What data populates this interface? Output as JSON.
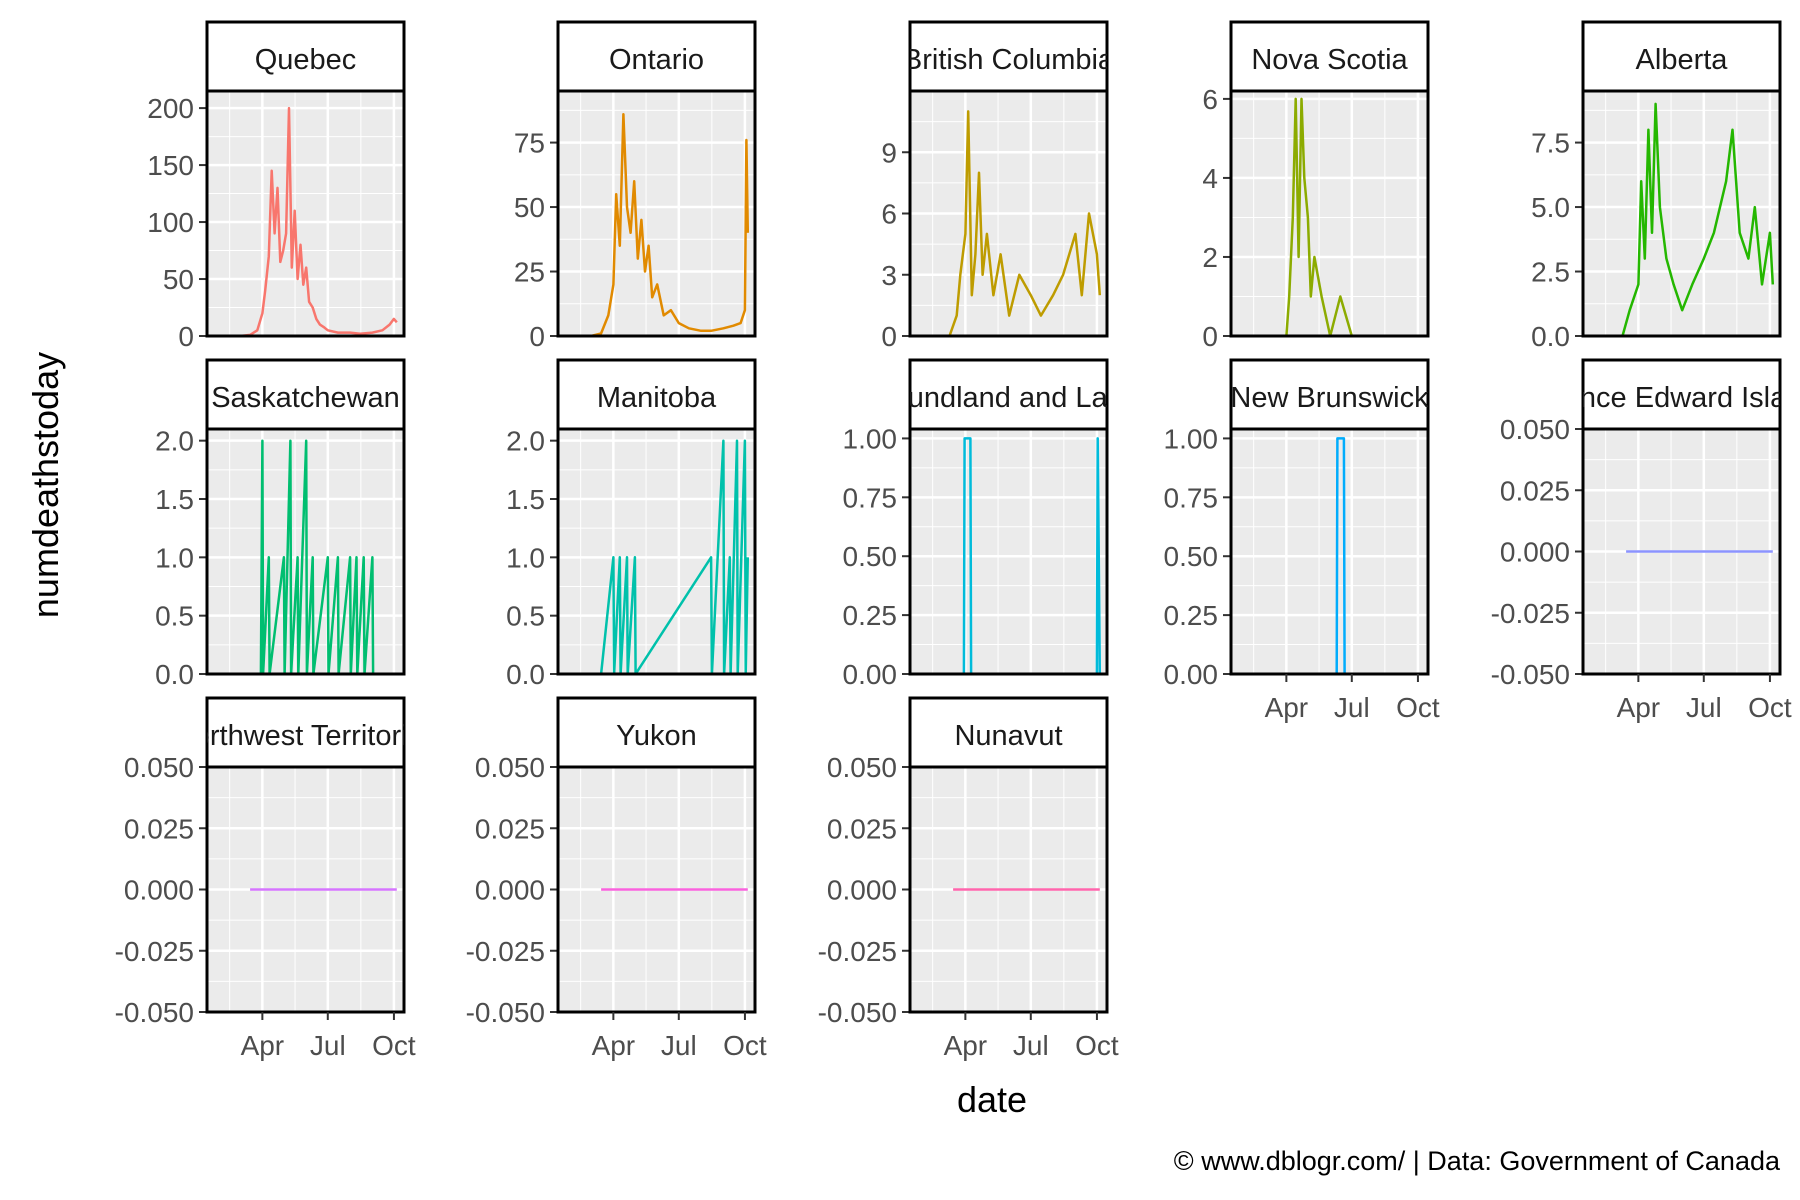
{
  "chart_data": {
    "type": "line",
    "layout": "facet-wrap",
    "xlabel": "date",
    "ylabel": "numdeathstoday",
    "caption": "© www.dblogr.com/  |  Data: Government of Canada",
    "x_ticks": [
      "Apr",
      "Jul",
      "Oct"
    ],
    "x_tick_dates": [
      "2020-04-01",
      "2020-07-01",
      "2020-10-01"
    ],
    "xlim": [
      "2020-01-15",
      "2020-10-15"
    ],
    "grid": true,
    "panel_background": "#ebebeb",
    "panels": [
      {
        "strip": "Quebec",
        "color": "#F8766D",
        "ylim": [
          0,
          215
        ],
        "yticks": [
          "0",
          "50",
          "100",
          "150",
          "200"
        ],
        "ytick_values": [
          0,
          50,
          100,
          150,
          200
        ],
        "x": [
          "2020-03-01",
          "2020-03-15",
          "2020-03-25",
          "2020-04-01",
          "2020-04-05",
          "2020-04-10",
          "2020-04-14",
          "2020-04-18",
          "2020-04-22",
          "2020-04-26",
          "2020-04-30",
          "2020-05-04",
          "2020-05-08",
          "2020-05-12",
          "2020-05-16",
          "2020-05-20",
          "2020-05-24",
          "2020-05-28",
          "2020-06-01",
          "2020-06-05",
          "2020-06-10",
          "2020-06-15",
          "2020-06-20",
          "2020-06-25",
          "2020-07-01",
          "2020-07-15",
          "2020-08-01",
          "2020-08-15",
          "2020-09-01",
          "2020-09-15",
          "2020-09-25",
          "2020-10-01",
          "2020-10-05"
        ],
        "y": [
          0,
          1,
          5,
          20,
          40,
          70,
          145,
          90,
          130,
          65,
          75,
          90,
          200,
          60,
          110,
          50,
          80,
          45,
          60,
          30,
          25,
          15,
          10,
          8,
          5,
          3,
          3,
          2,
          3,
          5,
          10,
          15,
          12
        ]
      },
      {
        "strip": "Ontario",
        "color": "#E18A00",
        "ylim": [
          0,
          95
        ],
        "yticks": [
          "0",
          "25",
          "50",
          "75"
        ],
        "ytick_values": [
          0,
          25,
          50,
          75
        ],
        "x": [
          "2020-03-01",
          "2020-03-15",
          "2020-03-25",
          "2020-04-01",
          "2020-04-05",
          "2020-04-10",
          "2020-04-15",
          "2020-04-20",
          "2020-04-25",
          "2020-04-30",
          "2020-05-05",
          "2020-05-10",
          "2020-05-15",
          "2020-05-20",
          "2020-05-25",
          "2020-06-01",
          "2020-06-10",
          "2020-06-20",
          "2020-07-01",
          "2020-07-15",
          "2020-08-01",
          "2020-08-15",
          "2020-09-01",
          "2020-09-15",
          "2020-09-25",
          "2020-10-01",
          "2020-10-03",
          "2020-10-05"
        ],
        "y": [
          0,
          1,
          8,
          20,
          55,
          35,
          86,
          50,
          40,
          60,
          30,
          45,
          25,
          35,
          15,
          20,
          8,
          10,
          5,
          3,
          2,
          2,
          3,
          4,
          5,
          10,
          76,
          40
        ]
      },
      {
        "strip": "British Columbia",
        "color": "#BE9C00",
        "ylim": [
          0,
          12
        ],
        "yticks": [
          "0",
          "3",
          "6",
          "9"
        ],
        "ytick_values": [
          0,
          3,
          6,
          9
        ],
        "x": [
          "2020-03-01",
          "2020-03-10",
          "2020-03-20",
          "2020-03-25",
          "2020-04-01",
          "2020-04-05",
          "2020-04-10",
          "2020-04-15",
          "2020-04-20",
          "2020-04-25",
          "2020-05-01",
          "2020-05-10",
          "2020-05-20",
          "2020-06-01",
          "2020-06-15",
          "2020-07-01",
          "2020-07-15",
          "2020-08-01",
          "2020-08-15",
          "2020-09-01",
          "2020-09-10",
          "2020-09-20",
          "2020-10-01",
          "2020-10-05"
        ],
        "y": [
          0,
          0,
          1,
          3,
          5,
          11,
          2,
          4,
          8,
          3,
          5,
          2,
          4,
          1,
          3,
          2,
          1,
          2,
          3,
          5,
          2,
          6,
          4,
          2
        ]
      },
      {
        "strip": "Nova Scotia",
        "color": "#8CAB00",
        "ylim": [
          0,
          6.2
        ],
        "yticks": [
          "0",
          "2",
          "4",
          "6"
        ],
        "ytick_values": [
          0,
          2,
          4,
          6
        ],
        "x": [
          "2020-03-15",
          "2020-04-01",
          "2020-04-05",
          "2020-04-10",
          "2020-04-14",
          "2020-04-18",
          "2020-04-22",
          "2020-04-26",
          "2020-05-01",
          "2020-05-05",
          "2020-05-10",
          "2020-05-20",
          "2020-06-01",
          "2020-06-15",
          "2020-07-01",
          "2020-08-01",
          "2020-09-01",
          "2020-10-05"
        ],
        "y": [
          0,
          0,
          1,
          3,
          6,
          2,
          6,
          4,
          3,
          1,
          2,
          1,
          0,
          1,
          0,
          0,
          0,
          0
        ]
      },
      {
        "strip": "Alberta",
        "color": "#24B700",
        "ylim": [
          0,
          9.5
        ],
        "yticks": [
          "0.0",
          "2.5",
          "5.0",
          "7.5"
        ],
        "ytick_values": [
          0,
          2.5,
          5,
          7.5
        ],
        "x": [
          "2020-03-10",
          "2020-03-20",
          "2020-04-01",
          "2020-04-05",
          "2020-04-10",
          "2020-04-15",
          "2020-04-20",
          "2020-04-25",
          "2020-05-01",
          "2020-05-10",
          "2020-05-20",
          "2020-06-01",
          "2020-06-15",
          "2020-07-01",
          "2020-07-15",
          "2020-08-01",
          "2020-08-10",
          "2020-08-20",
          "2020-09-01",
          "2020-09-10",
          "2020-09-20",
          "2020-10-01",
          "2020-10-05"
        ],
        "y": [
          0,
          1,
          2,
          6,
          3,
          8,
          4,
          9,
          5,
          3,
          2,
          1,
          2,
          3,
          4,
          6,
          8,
          4,
          3,
          5,
          2,
          4,
          2
        ]
      },
      {
        "strip": "Saskatchewan",
        "color": "#00BE70",
        "ylim": [
          0,
          2.1
        ],
        "yticks": [
          "0.0",
          "0.5",
          "1.0",
          "1.5",
          "2.0"
        ],
        "ytick_values": [
          0,
          0.5,
          1,
          1.5,
          2
        ],
        "x": [
          "2020-03-15",
          "2020-03-30",
          "2020-04-01",
          "2020-04-02",
          "2020-04-10",
          "2020-04-11",
          "2020-05-01",
          "2020-05-02",
          "2020-05-10",
          "2020-05-11",
          "2020-05-20",
          "2020-05-21",
          "2020-06-01",
          "2020-06-02",
          "2020-06-10",
          "2020-06-11",
          "2020-07-01",
          "2020-07-02",
          "2020-07-15",
          "2020-07-16",
          "2020-08-01",
          "2020-08-02",
          "2020-08-10",
          "2020-08-11",
          "2020-08-20",
          "2020-08-21",
          "2020-09-01",
          "2020-09-02",
          "2020-10-05"
        ],
        "y": [
          0,
          0,
          2,
          0,
          1,
          0,
          1,
          0,
          2,
          0,
          1,
          0,
          2,
          0,
          1,
          0,
          1,
          0,
          1,
          0,
          1,
          0,
          1,
          0,
          1,
          0,
          1,
          0,
          0
        ]
      },
      {
        "strip": "Manitoba",
        "color": "#00C1AB",
        "ylim": [
          0,
          2.1
        ],
        "yticks": [
          "0.0",
          "0.5",
          "1.0",
          "1.5",
          "2.0"
        ],
        "ytick_values": [
          0,
          0.5,
          1,
          1.5,
          2
        ],
        "x": [
          "2020-03-15",
          "2020-04-01",
          "2020-04-02",
          "2020-04-10",
          "2020-04-11",
          "2020-04-20",
          "2020-04-21",
          "2020-05-01",
          "2020-05-02",
          "2020-08-15",
          "2020-08-16",
          "2020-09-01",
          "2020-09-02",
          "2020-09-10",
          "2020-09-11",
          "2020-09-20",
          "2020-09-21",
          "2020-10-01",
          "2020-10-02",
          "2020-10-05"
        ],
        "y": [
          0,
          1,
          0,
          1,
          0,
          1,
          0,
          1,
          0,
          1,
          0,
          2,
          0,
          1,
          0,
          2,
          0,
          2,
          0,
          1
        ]
      },
      {
        "strip": "Newfoundland and Labrador",
        "color": "#00BBDA",
        "ylim": [
          0,
          1.04
        ],
        "yticks": [
          "0.00",
          "0.25",
          "0.50",
          "0.75",
          "1.00"
        ],
        "ytick_values": [
          0,
          0.25,
          0.5,
          0.75,
          1
        ],
        "x": [
          "2020-03-15",
          "2020-03-30",
          "2020-03-31",
          "2020-04-08",
          "2020-04-09",
          "2020-10-01",
          "2020-10-02",
          "2020-10-05"
        ],
        "y": [
          0,
          0,
          1,
          1,
          0,
          0,
          1,
          0
        ]
      },
      {
        "strip": "New Brunswick",
        "color": "#00ACFC",
        "ylim": [
          0,
          1.04
        ],
        "yticks": [
          "0.00",
          "0.25",
          "0.50",
          "0.75",
          "1.00"
        ],
        "ytick_values": [
          0,
          0.25,
          0.5,
          0.75,
          1
        ],
        "x": [
          "2020-03-15",
          "2020-06-10",
          "2020-06-11",
          "2020-06-20",
          "2020-06-21",
          "2020-10-05"
        ],
        "y": [
          0,
          0,
          1,
          1,
          0,
          0
        ]
      },
      {
        "strip": "Prince Edward Island",
        "color": "#8B93FF",
        "ylim": [
          -0.05,
          0.05
        ],
        "yticks": [
          "-0.050",
          "-0.025",
          "0.000",
          "0.025",
          "0.050"
        ],
        "ytick_values": [
          -0.05,
          -0.025,
          0,
          0.025,
          0.05
        ],
        "x": [
          "2020-03-15",
          "2020-10-05"
        ],
        "y": [
          0,
          0
        ]
      },
      {
        "strip": "Northwest Territories",
        "color": "#D575FE",
        "ylim": [
          -0.05,
          0.05
        ],
        "yticks": [
          "-0.050",
          "-0.025",
          "0.000",
          "0.025",
          "0.050"
        ],
        "ytick_values": [
          -0.05,
          -0.025,
          0,
          0.025,
          0.05
        ],
        "x": [
          "2020-03-15",
          "2020-10-05"
        ],
        "y": [
          0,
          0
        ]
      },
      {
        "strip": "Yukon",
        "color": "#F962DD",
        "ylim": [
          -0.05,
          0.05
        ],
        "yticks": [
          "-0.050",
          "-0.025",
          "0.000",
          "0.025",
          "0.050"
        ],
        "ytick_values": [
          -0.05,
          -0.025,
          0,
          0.025,
          0.05
        ],
        "x": [
          "2020-03-15",
          "2020-10-05"
        ],
        "y": [
          0,
          0
        ]
      },
      {
        "strip": "Nunavut",
        "color": "#FF65AC",
        "ylim": [
          -0.05,
          0.05
        ],
        "yticks": [
          "-0.050",
          "-0.025",
          "0.000",
          "0.025",
          "0.050"
        ],
        "ytick_values": [
          -0.05,
          -0.025,
          0,
          0.025,
          0.05
        ],
        "x": [
          "2020-03-15",
          "2020-10-05"
        ],
        "y": [
          0,
          0
        ]
      }
    ]
  }
}
